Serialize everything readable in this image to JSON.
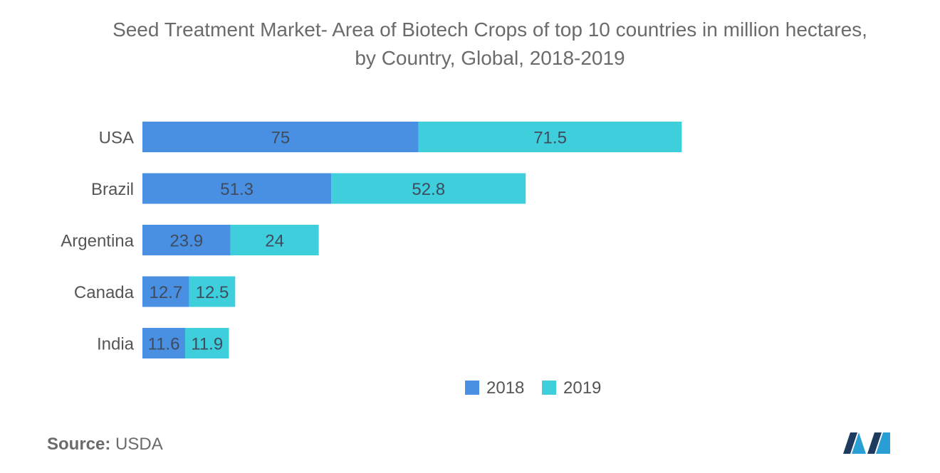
{
  "title_line1": "Seed Treatment Market- Area of Biotech Crops of top 10 countries in million hectares,",
  "title_line2": "by Country, Global, 2018-2019",
  "source_label": "Source:",
  "source_value": "USDA",
  "colors": {
    "s2018": "#4a90e2",
    "s2019": "#3fcfdc",
    "label": "#3f4b5e",
    "tick": "#555555"
  },
  "chart_data": {
    "type": "bar",
    "orientation": "horizontal",
    "stacked": true,
    "title": "Seed Treatment Market- Area of Biotech Crops of top 10 countries in million hectares, by Country, Global, 2018-2019",
    "categories": [
      "USA",
      "Brazil",
      "Argentina",
      "Canada",
      "India"
    ],
    "series": [
      {
        "name": "2018",
        "values": [
          75,
          51.3,
          23.9,
          12.7,
          11.6
        ]
      },
      {
        "name": "2019",
        "values": [
          71.5,
          52.8,
          24,
          12.5,
          11.9
        ]
      }
    ],
    "legend_position": "bottom",
    "grid": false,
    "xaxis_visible": false
  }
}
